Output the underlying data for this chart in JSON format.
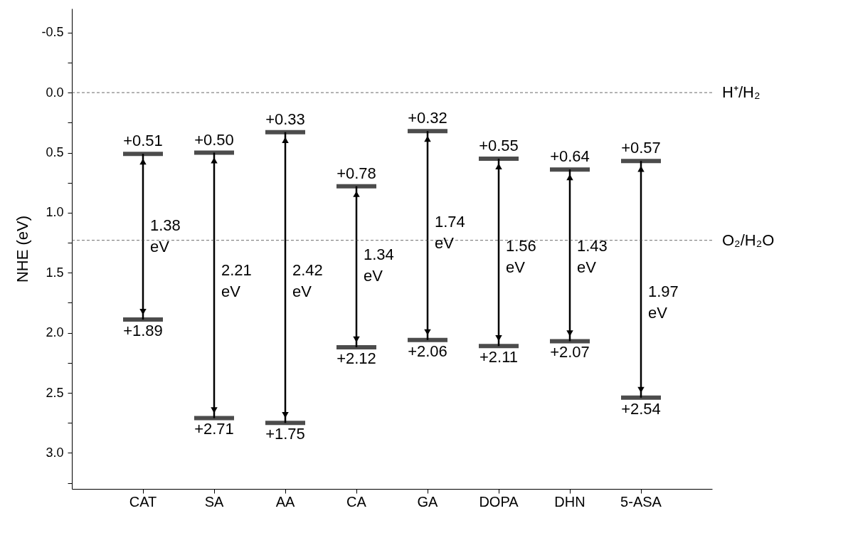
{
  "chart_data": {
    "type": "bar",
    "ylabel": "NHE (eV)",
    "categories": [
      "CAT",
      "SA",
      "AA",
      "CA",
      "GA",
      "DOPA",
      "DHN",
      "5-ASA"
    ],
    "base": [
      0.51,
      0.5,
      0.33,
      0.78,
      0.32,
      0.55,
      0.64,
      0.57
    ],
    "values": [
      1.38,
      2.21,
      2.42,
      1.34,
      1.74,
      1.56,
      1.43,
      1.97
    ],
    "color": "#000000",
    "ylim": [
      3.3,
      -0.7
    ],
    "yticks": [
      {
        "value": -0.5,
        "label": "-0.5"
      },
      {
        "value": -0.25,
        "label": null
      },
      {
        "value": 0,
        "label": "0.0"
      },
      {
        "value": 0.25,
        "label": null
      },
      {
        "value": 0.5,
        "label": "0.5"
      },
      {
        "value": 0.75,
        "label": null
      },
      {
        "value": 1,
        "label": "1.0"
      },
      {
        "value": 1.25,
        "label": null
      },
      {
        "value": 1.5,
        "label": "1.5"
      },
      {
        "value": 1.75,
        "label": null
      },
      {
        "value": 2,
        "label": "2.0"
      },
      {
        "value": 2.25,
        "label": null
      },
      {
        "value": 2.5,
        "label": "2.5"
      },
      {
        "value": 2.75,
        "label": null
      },
      {
        "value": 3,
        "label": "3.0"
      },
      {
        "value": 3.25,
        "label": null
      }
    ],
    "ref_lines": [
      {
        "axis": "y",
        "value": 0,
        "label": "H⁺/H₂",
        "line_style": "dashed"
      },
      {
        "axis": "y",
        "value": 1.23,
        "label": "O₂/H₂O",
        "line_style": "dashed"
      }
    ],
    "annotations": [
      {
        "text": "+0.51",
        "x": "CAT",
        "y": 0.51
      },
      {
        "text": "+1.89",
        "x": "CAT",
        "y": 1.89
      },
      {
        "text": "+0.50",
        "x": "SA",
        "y": 0.5
      },
      {
        "text": "+2.71",
        "x": "SA",
        "y": 2.71
      },
      {
        "text": "+0.33",
        "x": "AA",
        "y": 0.33
      },
      {
        "text": "+1.75",
        "x": "AA",
        "y": 2.75
      },
      {
        "text": "+0.78",
        "x": "CA",
        "y": 0.78
      },
      {
        "text": "+2.12",
        "x": "CA",
        "y": 2.12
      },
      {
        "text": "+0.32",
        "x": "GA",
        "y": 0.32
      },
      {
        "text": "+2.06",
        "x": "GA",
        "y": 2.06
      },
      {
        "text": "+0.55",
        "x": "DOPA",
        "y": 0.55
      },
      {
        "text": "+2.11",
        "x": "DOPA",
        "y": 2.11
      },
      {
        "text": "+0.64",
        "x": "DHN",
        "y": 0.64
      },
      {
        "text": "+2.07",
        "x": "DHN",
        "y": 2.07
      },
      {
        "text": "+0.57",
        "x": "5-ASA",
        "y": 0.57
      },
      {
        "text": "+2.54",
        "x": "5-ASA",
        "y": 2.54
      },
      {
        "text": "1.38 eV",
        "x": "CAT",
        "y": 1.11
      },
      {
        "text": "2.21 eV",
        "x": "SA",
        "y": 1.48
      },
      {
        "text": "2.42 eV",
        "x": "AA",
        "y": 1.48
      },
      {
        "text": "1.34 eV",
        "x": "CA",
        "y": 1.35
      },
      {
        "text": "1.74 eV",
        "x": "GA",
        "y": 1.08
      },
      {
        "text": "1.56 eV",
        "x": "DOPA",
        "y": 1.28
      },
      {
        "text": "1.43 eV",
        "x": "DHN",
        "y": 1.28
      },
      {
        "text": "1.97 eV",
        "x": "5-ASA",
        "y": 1.66
      }
    ]
  }
}
